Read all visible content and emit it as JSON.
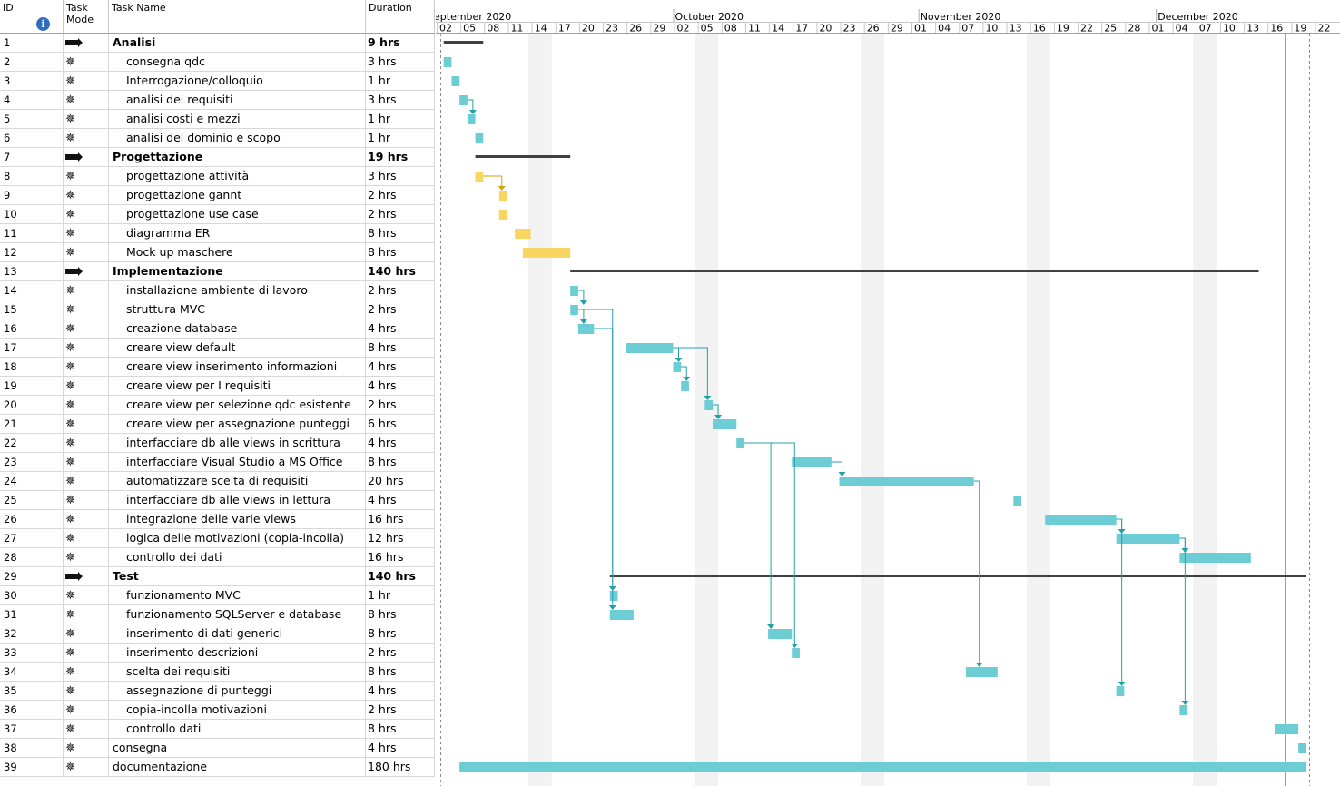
{
  "columns": {
    "id": "ID",
    "info": "i",
    "mode": "Task Mode",
    "name": "Task Name",
    "duration": "Duration"
  },
  "timeline": {
    "months": [
      "eptember 2020",
      "October 2020",
      "November 2020",
      "December 2020"
    ],
    "days": [
      "02",
      "05",
      "08",
      "11",
      "14",
      "17",
      "20",
      "23",
      "26",
      "29",
      "02",
      "05",
      "08",
      "11",
      "14",
      "17",
      "20",
      "23",
      "26",
      "29",
      "01",
      "04",
      "07",
      "10",
      "13",
      "16",
      "19",
      "22",
      "25",
      "28",
      "01",
      "04",
      "07",
      "10",
      "13",
      "16",
      "19",
      "22"
    ]
  },
  "tasks": [
    {
      "id": "1",
      "name": "Analisi",
      "duration": "9 hrs",
      "summary": true,
      "start": "2020-09-02",
      "end": "2020-09-06"
    },
    {
      "id": "2",
      "name": "consegna qdc",
      "duration": "3 hrs",
      "start": "2020-09-02",
      "end": "2020-09-02"
    },
    {
      "id": "3",
      "name": "Interrogazione/colloquio",
      "duration": "1 hr",
      "start": "2020-09-03",
      "end": "2020-09-03"
    },
    {
      "id": "4",
      "name": "analisi dei requisiti",
      "duration": "3 hrs",
      "start": "2020-09-04",
      "end": "2020-09-04"
    },
    {
      "id": "5",
      "name": "analisi costi e mezzi",
      "duration": "1 hr",
      "start": "2020-09-05",
      "end": "2020-09-05"
    },
    {
      "id": "6",
      "name": "analisi del dominio e scopo",
      "duration": "1 hr",
      "start": "2020-09-06",
      "end": "2020-09-06"
    },
    {
      "id": "7",
      "name": "Progettazione",
      "duration": "19 hrs",
      "summary": true,
      "start": "2020-09-06",
      "end": "2020-09-17"
    },
    {
      "id": "8",
      "name": "progettazione attività",
      "duration": "3 hrs",
      "start": "2020-09-06",
      "end": "2020-09-06"
    },
    {
      "id": "9",
      "name": "progettazione gannt",
      "duration": "2 hrs",
      "start": "2020-09-09",
      "end": "2020-09-09"
    },
    {
      "id": "10",
      "name": "progettazione use case",
      "duration": "2 hrs",
      "start": "2020-09-09",
      "end": "2020-09-09"
    },
    {
      "id": "11",
      "name": "diagramma ER",
      "duration": "8 hrs",
      "start": "2020-09-11",
      "end": "2020-09-12"
    },
    {
      "id": "12",
      "name": "Mock up maschere",
      "duration": "8 hrs",
      "start": "2020-09-12",
      "end": "2020-09-17"
    },
    {
      "id": "13",
      "name": "Implementazione",
      "duration": "140 hrs",
      "summary": true,
      "start": "2020-09-18",
      "end": "2020-12-13"
    },
    {
      "id": "14",
      "name": "installazione ambiente di lavoro",
      "duration": "2 hrs",
      "start": "2020-09-18",
      "end": "2020-09-18"
    },
    {
      "id": "15",
      "name": "struttura MVC",
      "duration": "2 hrs",
      "start": "2020-09-18",
      "end": "2020-09-18"
    },
    {
      "id": "16",
      "name": "creazione database",
      "duration": "4 hrs",
      "start": "2020-09-19",
      "end": "2020-09-20"
    },
    {
      "id": "17",
      "name": "creare view default",
      "duration": "8 hrs",
      "start": "2020-09-25",
      "end": "2020-09-30"
    },
    {
      "id": "18",
      "name": "creare view inserimento informazioni",
      "duration": "4 hrs",
      "start": "2020-10-01",
      "end": "2020-10-01"
    },
    {
      "id": "19",
      "name": "creare view per I requisiti",
      "duration": "4 hrs",
      "start": "2020-10-02",
      "end": "2020-10-02"
    },
    {
      "id": "20",
      "name": "creare view per selezione qdc esistente",
      "duration": "2 hrs",
      "start": "2020-10-05",
      "end": "2020-10-05"
    },
    {
      "id": "21",
      "name": "creare view per assegnazione punteggi",
      "duration": "6 hrs",
      "start": "2020-10-06",
      "end": "2020-10-08"
    },
    {
      "id": "22",
      "name": "interfacciare db alle views in scrittura",
      "duration": "4 hrs",
      "start": "2020-10-09",
      "end": "2020-10-09"
    },
    {
      "id": "23",
      "name": "interfacciare Visual Studio a MS Office",
      "duration": "8 hrs",
      "start": "2020-10-16",
      "end": "2020-10-20"
    },
    {
      "id": "24",
      "name": "automatizzare scelta di requisiti",
      "duration": "20 hrs",
      "start": "2020-10-22",
      "end": "2020-11-07"
    },
    {
      "id": "25",
      "name": "interfacciare db alle views in lettura",
      "duration": "4 hrs",
      "start": "2020-11-13",
      "end": "2020-11-13"
    },
    {
      "id": "26",
      "name": "integrazione delle varie views",
      "duration": "16 hrs",
      "start": "2020-11-17",
      "end": "2020-11-25"
    },
    {
      "id": "27",
      "name": "logica delle motivazioni (copia-incolla)",
      "duration": "12 hrs",
      "start": "2020-11-26",
      "end": "2020-12-03"
    },
    {
      "id": "28",
      "name": "controllo dei dati",
      "duration": "16 hrs",
      "start": "2020-12-04",
      "end": "2020-12-12"
    },
    {
      "id": "29",
      "name": "Test",
      "duration": "140 hrs",
      "summary": true,
      "start": "2020-09-23",
      "end": "2020-12-19"
    },
    {
      "id": "30",
      "name": "funzionamento MVC",
      "duration": "1 hr",
      "start": "2020-09-23",
      "end": "2020-09-23"
    },
    {
      "id": "31",
      "name": "funzionamento SQLServer e database",
      "duration": "8 hrs",
      "start": "2020-09-23",
      "end": "2020-09-25"
    },
    {
      "id": "32",
      "name": "inserimento di dati generici",
      "duration": "8 hrs",
      "start": "2020-10-13",
      "end": "2020-10-15"
    },
    {
      "id": "33",
      "name": "inserimento descrizioni",
      "duration": "2 hrs",
      "start": "2020-10-16",
      "end": "2020-10-16"
    },
    {
      "id": "34",
      "name": "scelta dei requisiti",
      "duration": "8 hrs",
      "start": "2020-11-07",
      "end": "2020-11-10"
    },
    {
      "id": "35",
      "name": "assegnazione di punteggi",
      "duration": "4 hrs",
      "start": "2020-11-26",
      "end": "2020-11-26"
    },
    {
      "id": "36",
      "name": "copia-incolla motivazioni",
      "duration": "2 hrs",
      "start": "2020-12-04",
      "end": "2020-12-04"
    },
    {
      "id": "37",
      "name": "controllo dati",
      "duration": "8 hrs",
      "start": "2020-12-16",
      "end": "2020-12-18"
    },
    {
      "id": "38",
      "name": "consegna",
      "duration": "4 hrs",
      "start": "2020-12-19",
      "end": "2020-12-19"
    },
    {
      "id": "39",
      "name": "documentazione",
      "duration": "180 hrs",
      "start": "2020-09-04",
      "end": "2020-12-19"
    }
  ],
  "colors": {
    "task_bar": "#6ccdd4",
    "selected_bar": "#fad561",
    "summary_bar": "#404040",
    "link": "#23a0a8",
    "selected_link": "#d4a106",
    "nonworking": "#f2f2f2",
    "today_line": "#7fbf4a"
  }
}
